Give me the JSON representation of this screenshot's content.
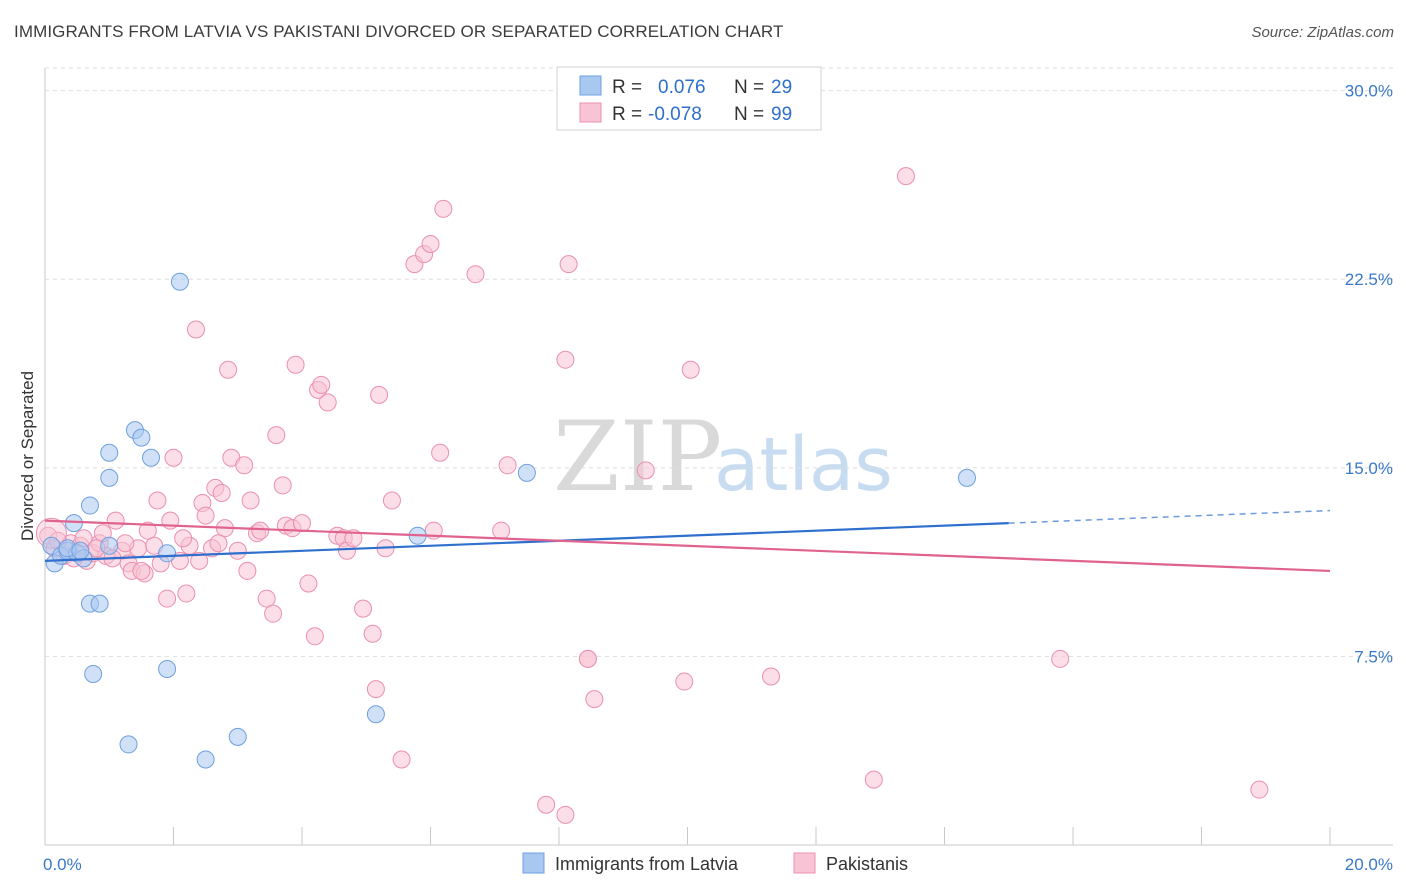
{
  "title": "IMMIGRANTS FROM LATVIA VS PAKISTANI DIVORCED OR SEPARATED CORRELATION CHART",
  "source": "Source: ZipAtlas.com",
  "watermark": {
    "zip": "ZIP",
    "atlas": "atlas"
  },
  "legend": {
    "rows": [
      {
        "r_label": "R =",
        "r_value": "0.076",
        "n_label": "N =",
        "n_value": "29",
        "color": "#a9c8f0",
        "stroke": "#6ea0e0"
      },
      {
        "r_label": "R =",
        "r_value": "-0.078",
        "n_label": "N =",
        "n_value": "99",
        "color": "#f8c3d4",
        "stroke": "#eb8fb0"
      }
    ]
  },
  "bottom_legend": [
    "Immigrants from Latvia",
    "Pakistanis"
  ],
  "chart_data": {
    "type": "scatter",
    "title": "IMMIGRANTS FROM LATVIA VS PAKISTANI DIVORCED OR SEPARATED CORRELATION CHART",
    "xlabel": "",
    "ylabel": "Divorced or Separated",
    "xlim": [
      0,
      20
    ],
    "ylim": [
      0,
      30.9
    ],
    "x_tick_labels": [
      "0.0%",
      "20.0%"
    ],
    "y_ticks": [
      7.5,
      15.0,
      22.5,
      30.0
    ],
    "y_tick_labels": [
      "7.5%",
      "15.0%",
      "22.5%",
      "30.0%"
    ],
    "grid": "horizontal dashed",
    "legend_position": "top-center",
    "series": [
      {
        "name": "Immigrants from Latvia",
        "color": "#a9c8f0",
        "stroke": "#6ea0e0",
        "line_color": "#2f6fcd",
        "trend": {
          "x0": 0,
          "y0": 11.3,
          "x1": 15.0,
          "y1": 12.8,
          "dash_x1": 20,
          "dash_y1": 13.3
        },
        "points": [
          [
            0.1,
            11.9
          ],
          [
            0.15,
            11.2
          ],
          [
            0.25,
            11.5
          ],
          [
            0.35,
            11.7
          ],
          [
            0.45,
            12.8
          ],
          [
            0.5,
            11.6
          ],
          [
            0.6,
            11.4
          ],
          [
            0.7,
            13.5
          ],
          [
            1.0,
            11.9
          ],
          [
            1.0,
            15.6
          ],
          [
            1.0,
            14.6
          ],
          [
            1.4,
            16.5
          ],
          [
            1.5,
            16.2
          ],
          [
            1.65,
            15.4
          ],
          [
            2.1,
            22.4
          ],
          [
            1.9,
            11.6
          ],
          [
            0.7,
            9.6
          ],
          [
            0.85,
            9.6
          ],
          [
            0.75,
            6.8
          ],
          [
            1.3,
            4.0
          ],
          [
            1.9,
            7.0
          ],
          [
            2.5,
            3.4
          ],
          [
            3.0,
            4.3
          ],
          [
            5.15,
            5.2
          ],
          [
            5.8,
            12.3
          ],
          [
            7.5,
            14.8
          ],
          [
            14.35,
            14.6
          ],
          [
            0.35,
            11.8
          ],
          [
            0.55,
            11.7
          ]
        ]
      },
      {
        "name": "Pakistanis",
        "color": "#f8c3d4",
        "stroke": "#eb8fb0",
        "line_color": "#e0628f",
        "trend": {
          "x0": 0,
          "y0": 12.9,
          "x1": 20,
          "y1": 10.9
        },
        "points": [
          [
            0.05,
            12.3
          ],
          [
            0.15,
            11.8
          ],
          [
            0.3,
            11.5
          ],
          [
            0.4,
            12.0
          ],
          [
            0.55,
            11.9
          ],
          [
            0.65,
            11.3
          ],
          [
            0.75,
            11.6
          ],
          [
            0.85,
            12.0
          ],
          [
            0.9,
            12.4
          ],
          [
            0.95,
            11.5
          ],
          [
            1.1,
            12.9
          ],
          [
            1.2,
            11.7
          ],
          [
            1.3,
            11.2
          ],
          [
            1.35,
            10.9
          ],
          [
            1.45,
            11.8
          ],
          [
            1.55,
            10.8
          ],
          [
            1.6,
            12.5
          ],
          [
            1.7,
            11.9
          ],
          [
            1.75,
            13.7
          ],
          [
            1.8,
            11.2
          ],
          [
            1.9,
            9.8
          ],
          [
            1.95,
            12.9
          ],
          [
            2.0,
            15.4
          ],
          [
            2.1,
            11.3
          ],
          [
            2.2,
            10.0
          ],
          [
            2.25,
            11.9
          ],
          [
            2.35,
            20.5
          ],
          [
            2.45,
            13.6
          ],
          [
            2.5,
            13.1
          ],
          [
            2.6,
            11.8
          ],
          [
            2.65,
            14.2
          ],
          [
            2.75,
            14.0
          ],
          [
            2.8,
            12.6
          ],
          [
            2.85,
            18.9
          ],
          [
            2.9,
            15.4
          ],
          [
            3.0,
            11.7
          ],
          [
            3.1,
            15.1
          ],
          [
            3.15,
            10.9
          ],
          [
            3.2,
            13.7
          ],
          [
            3.3,
            12.4
          ],
          [
            3.45,
            9.8
          ],
          [
            3.55,
            9.2
          ],
          [
            3.6,
            16.3
          ],
          [
            3.7,
            14.3
          ],
          [
            3.75,
            12.7
          ],
          [
            3.85,
            12.6
          ],
          [
            3.9,
            19.1
          ],
          [
            4.1,
            10.4
          ],
          [
            4.2,
            8.3
          ],
          [
            4.25,
            18.1
          ],
          [
            4.3,
            18.3
          ],
          [
            4.4,
            17.6
          ],
          [
            4.55,
            12.3
          ],
          [
            4.65,
            12.2
          ],
          [
            4.7,
            11.7
          ],
          [
            4.95,
            9.4
          ],
          [
            5.1,
            8.4
          ],
          [
            5.15,
            6.2
          ],
          [
            5.2,
            17.9
          ],
          [
            5.4,
            13.7
          ],
          [
            5.55,
            3.4
          ],
          [
            5.75,
            23.1
          ],
          [
            5.9,
            23.5
          ],
          [
            6.0,
            23.9
          ],
          [
            6.05,
            12.5
          ],
          [
            6.15,
            15.6
          ],
          [
            6.2,
            25.3
          ],
          [
            6.7,
            22.7
          ],
          [
            7.1,
            12.5
          ],
          [
            7.2,
            15.1
          ],
          [
            7.8,
            1.6
          ],
          [
            8.1,
            1.2
          ],
          [
            8.15,
            23.1
          ],
          [
            8.1,
            19.3
          ],
          [
            8.45,
            7.4
          ],
          [
            8.55,
            5.8
          ],
          [
            8.45,
            7.4
          ],
          [
            9.35,
            14.9
          ],
          [
            9.95,
            6.5
          ],
          [
            10.05,
            18.9
          ],
          [
            11.3,
            6.7
          ],
          [
            12.9,
            2.6
          ],
          [
            13.4,
            26.6
          ],
          [
            15.8,
            7.4
          ],
          [
            18.9,
            2.2
          ],
          [
            0.2,
            12.1
          ],
          [
            0.45,
            11.4
          ],
          [
            0.6,
            12.2
          ],
          [
            0.8,
            11.8
          ],
          [
            1.05,
            11.4
          ],
          [
            1.25,
            12.0
          ],
          [
            1.5,
            10.9
          ],
          [
            2.15,
            12.2
          ],
          [
            2.4,
            11.3
          ],
          [
            2.7,
            12.0
          ],
          [
            3.35,
            12.5
          ],
          [
            4.0,
            12.8
          ],
          [
            4.8,
            12.2
          ],
          [
            5.3,
            11.8
          ]
        ]
      }
    ]
  }
}
